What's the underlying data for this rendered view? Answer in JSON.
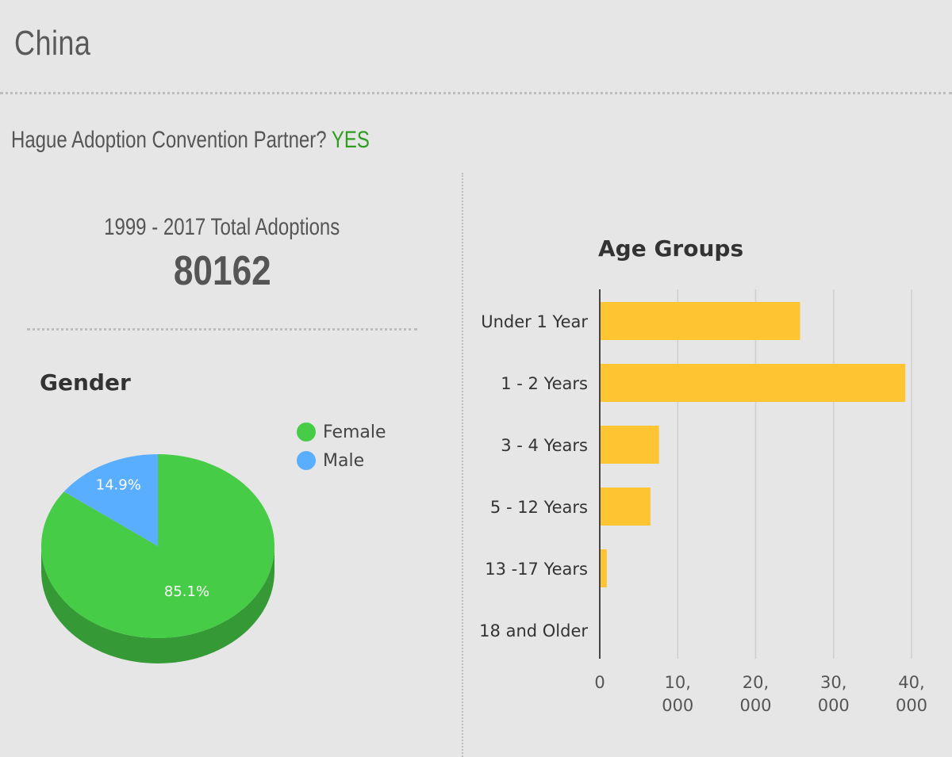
{
  "header": {
    "title": "China"
  },
  "hague": {
    "label": "Hague Adoption Convention Partner?",
    "value": "YES"
  },
  "totals": {
    "label": "1999 - 2017 Total Adoptions",
    "value": "80162"
  },
  "chart_data": [
    {
      "type": "pie",
      "title": "Gender",
      "legend_position": "right",
      "series": [
        {
          "name": "Female",
          "value": 85.1,
          "label": "85.1%",
          "color": "#46cc46"
        },
        {
          "name": "Male",
          "value": 14.9,
          "label": "14.9%",
          "color": "#5aaeff"
        }
      ]
    },
    {
      "type": "bar",
      "orientation": "horizontal",
      "title": "Age Groups",
      "categories": [
        "Under 1 Year",
        "1 - 2 Years",
        "3 - 4 Years",
        "5 - 12 Years",
        "13 -17 Years",
        "18 and Older"
      ],
      "values": [
        25700,
        39200,
        7600,
        6500,
        900,
        0
      ],
      "xlim": [
        0,
        40000
      ],
      "ticks": [
        {
          "value": 0,
          "line1": "0",
          "line2": ""
        },
        {
          "value": 10000,
          "line1": "10,",
          "line2": "000"
        },
        {
          "value": 20000,
          "line1": "20,",
          "line2": "000"
        },
        {
          "value": 30000,
          "line1": "30,",
          "line2": "000"
        },
        {
          "value": 40000,
          "line1": "40,",
          "line2": "000"
        }
      ],
      "grid": true,
      "color": "#ffc431"
    }
  ]
}
